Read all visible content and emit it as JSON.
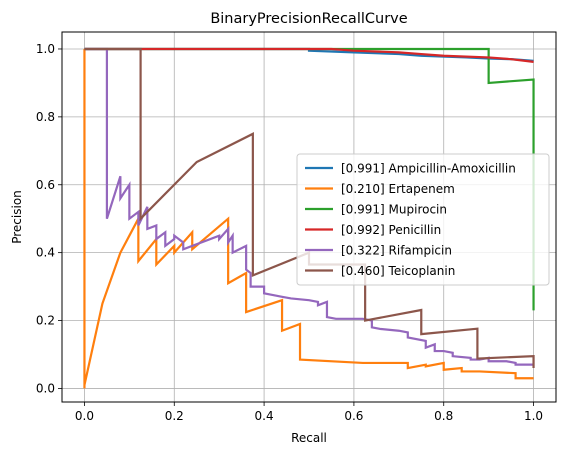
{
  "chart_data": {
    "type": "line",
    "title": "BinaryPrecisionRecallCurve",
    "xlabel": "Recall",
    "ylabel": "Precision",
    "xlim": [
      -0.05,
      1.05
    ],
    "ylim": [
      -0.04,
      1.05
    ],
    "xticks": [
      "0.0",
      "0.2",
      "0.4",
      "0.6",
      "0.8",
      "1.0"
    ],
    "yticks": [
      "0.0",
      "0.2",
      "0.4",
      "0.6",
      "0.8",
      "1.0"
    ],
    "grid": true,
    "legend_position": "right",
    "series": [
      {
        "name": "[0.991] Ampicillin-Amoxicillin",
        "color": "#1f77b4",
        "points": [
          [
            0,
            1
          ],
          [
            0.4,
            1
          ],
          [
            0.5,
            1
          ],
          [
            0.5,
            0.995
          ],
          [
            0.6,
            0.99
          ],
          [
            0.7,
            0.985
          ],
          [
            0.75,
            0.98
          ],
          [
            0.85,
            0.975
          ],
          [
            0.9,
            0.972
          ],
          [
            0.95,
            0.97
          ],
          [
            1,
            0.965
          ]
        ]
      },
      {
        "name": "[0.210] Ertapenem",
        "color": "#ff7f0e",
        "points": [
          [
            0,
            0
          ],
          [
            0,
            1
          ],
          [
            0,
            0.01
          ],
          [
            0.04,
            0.25
          ],
          [
            0.08,
            0.4
          ],
          [
            0.12,
            0.5
          ],
          [
            0.12,
            0.375
          ],
          [
            0.16,
            0.44
          ],
          [
            0.16,
            0.365
          ],
          [
            0.2,
            0.42
          ],
          [
            0.2,
            0.4
          ],
          [
            0.24,
            0.46
          ],
          [
            0.24,
            0.41
          ],
          [
            0.32,
            0.5
          ],
          [
            0.32,
            0.31
          ],
          [
            0.36,
            0.34
          ],
          [
            0.36,
            0.225
          ],
          [
            0.44,
            0.26
          ],
          [
            0.44,
            0.17
          ],
          [
            0.48,
            0.19
          ],
          [
            0.48,
            0.085
          ],
          [
            0.62,
            0.075
          ],
          [
            0.72,
            0.075
          ],
          [
            0.72,
            0.06
          ],
          [
            0.76,
            0.07
          ],
          [
            0.76,
            0.065
          ],
          [
            0.8,
            0.075
          ],
          [
            0.8,
            0.055
          ],
          [
            0.84,
            0.06
          ],
          [
            0.84,
            0.05
          ],
          [
            0.88,
            0.05
          ],
          [
            0.96,
            0.045
          ],
          [
            0.96,
            0.03
          ],
          [
            1,
            0.03
          ]
        ]
      },
      {
        "name": "[0.991] Mupirocin",
        "color": "#2ca02c",
        "points": [
          [
            0,
            1
          ],
          [
            0.9,
            1
          ],
          [
            0.9,
            0.9
          ],
          [
            1,
            0.91
          ],
          [
            1,
            0.23
          ]
        ]
      },
      {
        "name": "[0.992] Penicillin",
        "color": "#d62728",
        "points": [
          [
            0,
            1
          ],
          [
            0.55,
            1
          ],
          [
            0.6,
            0.995
          ],
          [
            0.7,
            0.99
          ],
          [
            0.75,
            0.985
          ],
          [
            0.8,
            0.98
          ],
          [
            0.9,
            0.975
          ],
          [
            0.95,
            0.97
          ],
          [
            1,
            0.962
          ]
        ]
      },
      {
        "name": "[0.322] Rifampicin",
        "color": "#9467bd",
        "points": [
          [
            0,
            1
          ],
          [
            0.05,
            1
          ],
          [
            0.05,
            0.5
          ],
          [
            0.08,
            0.625
          ],
          [
            0.08,
            0.56
          ],
          [
            0.1,
            0.6
          ],
          [
            0.1,
            0.5
          ],
          [
            0.12,
            0.52
          ],
          [
            0.12,
            0.48
          ],
          [
            0.14,
            0.535
          ],
          [
            0.14,
            0.47
          ],
          [
            0.16,
            0.48
          ],
          [
            0.16,
            0.44
          ],
          [
            0.18,
            0.46
          ],
          [
            0.18,
            0.42
          ],
          [
            0.2,
            0.44
          ],
          [
            0.2,
            0.45
          ],
          [
            0.22,
            0.43
          ],
          [
            0.22,
            0.41
          ],
          [
            0.3,
            0.45
          ],
          [
            0.3,
            0.44
          ],
          [
            0.32,
            0.47
          ],
          [
            0.32,
            0.43
          ],
          [
            0.33,
            0.45
          ],
          [
            0.33,
            0.4
          ],
          [
            0.36,
            0.42
          ],
          [
            0.36,
            0.35
          ],
          [
            0.37,
            0.34
          ],
          [
            0.37,
            0.3
          ],
          [
            0.4,
            0.3
          ],
          [
            0.4,
            0.28
          ],
          [
            0.42,
            0.275
          ],
          [
            0.44,
            0.27
          ],
          [
            0.46,
            0.265
          ],
          [
            0.5,
            0.26
          ],
          [
            0.52,
            0.255
          ],
          [
            0.52,
            0.245
          ],
          [
            0.54,
            0.255
          ],
          [
            0.54,
            0.21
          ],
          [
            0.56,
            0.205
          ],
          [
            0.62,
            0.205
          ],
          [
            0.64,
            0.2
          ],
          [
            0.64,
            0.18
          ],
          [
            0.66,
            0.175
          ],
          [
            0.7,
            0.17
          ],
          [
            0.72,
            0.165
          ],
          [
            0.72,
            0.15
          ],
          [
            0.76,
            0.14
          ],
          [
            0.76,
            0.12
          ],
          [
            0.78,
            0.13
          ],
          [
            0.78,
            0.11
          ],
          [
            0.8,
            0.11
          ],
          [
            0.82,
            0.105
          ],
          [
            0.82,
            0.095
          ],
          [
            0.86,
            0.09
          ],
          [
            0.86,
            0.085
          ],
          [
            0.88,
            0.085
          ],
          [
            0.9,
            0.09
          ],
          [
            0.9,
            0.08
          ],
          [
            0.92,
            0.08
          ],
          [
            0.94,
            0.08
          ],
          [
            0.96,
            0.075
          ],
          [
            0.96,
            0.07
          ],
          [
            1,
            0.07
          ]
        ]
      },
      {
        "name": "[0.460] Teicoplanin",
        "color": "#8c564b",
        "points": [
          [
            0,
            1
          ],
          [
            0.125,
            1
          ],
          [
            0.125,
            0.5
          ],
          [
            0.25,
            0.667
          ],
          [
            0.375,
            0.75
          ],
          [
            0.375,
            0.333
          ],
          [
            0.5,
            0.4
          ],
          [
            0.5,
            0.365
          ],
          [
            0.625,
            0.365
          ],
          [
            0.625,
            0.2
          ],
          [
            0.75,
            0.231
          ],
          [
            0.75,
            0.16
          ],
          [
            0.875,
            0.176
          ],
          [
            0.875,
            0.088
          ],
          [
            1,
            0.095
          ],
          [
            1,
            0.06
          ]
        ]
      }
    ]
  }
}
